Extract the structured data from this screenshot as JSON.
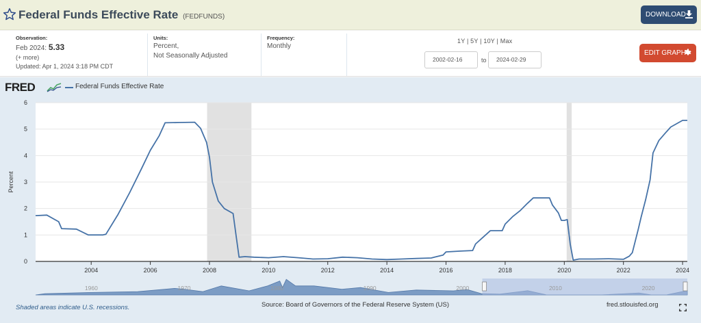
{
  "header": {
    "title": "Federal Funds Effective Rate",
    "series_id": "(FEDFUNDS)",
    "download_label": "DOWNLOAD",
    "star_icon": "star-outline-icon",
    "download_icon": "download-icon"
  },
  "meta": {
    "observation_label": "Observation:",
    "observation_date": "Feb 2024:",
    "observation_value": "5.33",
    "more_link": "(+ more)",
    "updated": "Updated: Apr 1, 2024 3:18 PM CDT",
    "units_label": "Units:",
    "units_line1": "Percent,",
    "units_line2": "Not Seasonally Adjusted",
    "frequency_label": "Frequency:",
    "frequency_value": "Monthly",
    "ranges": "1Y | 5Y | 10Y | Max",
    "date_from": "2002-02-16",
    "date_to": "2024-02-29",
    "to_label": "to",
    "edit_label": "EDIT GRAPH",
    "edit_icon": "gear-icon"
  },
  "chart_area": {
    "logo_text": "FRED",
    "legend_label": "Federal Funds Effective Rate",
    "recession_note": "Shaded areas indicate U.S. recessions.",
    "source": "Source: Board of Governors of the Federal Reserve System (US)",
    "site": "fred.stlouisfed.org",
    "colors": {
      "line": "#4572a7",
      "recession": "#e1e1e1",
      "plot_bg": "#ffffff",
      "panel_bg": "#e2ebf3"
    },
    "navigator_ticks": [
      "1960",
      "1970",
      "1980",
      "1990",
      "2000",
      "2010",
      "2020"
    ]
  },
  "chart_data": {
    "type": "line",
    "title": "",
    "xlabel": "",
    "ylabel": "Percent",
    "ylim": [
      0,
      6
    ],
    "xlim": [
      2002.12,
      2024.16
    ],
    "xticks": [
      "2004",
      "2006",
      "2008",
      "2010",
      "2012",
      "2014",
      "2016",
      "2018",
      "2020",
      "2022",
      "2024"
    ],
    "yticks": [
      "0",
      "1",
      "2",
      "3",
      "4",
      "5",
      "6"
    ],
    "grid": true,
    "legend": "top-left",
    "recessions": [
      [
        2007.92,
        2009.42
      ],
      [
        2020.08,
        2020.25
      ]
    ],
    "series": [
      {
        "name": "Federal Funds Effective Rate",
        "x": [
          2002.12,
          2002.5,
          2002.9,
          2003.0,
          2003.5,
          2003.9,
          2004.4,
          2004.5,
          2004.9,
          2005.3,
          2005.7,
          2006.0,
          2006.3,
          2006.5,
          2007.0,
          2007.5,
          2007.7,
          2007.9,
          2008.0,
          2008.1,
          2008.3,
          2008.5,
          2008.8,
          2008.9,
          2009.0,
          2009.2,
          2009.5,
          2010.0,
          2010.5,
          2011.0,
          2011.5,
          2012.0,
          2012.5,
          2013.0,
          2013.5,
          2014.0,
          2014.5,
          2015.0,
          2015.5,
          2015.9,
          2016.0,
          2016.5,
          2016.9,
          2017.0,
          2017.25,
          2017.5,
          2017.9,
          2018.0,
          2018.25,
          2018.5,
          2018.75,
          2018.95,
          2019.0,
          2019.5,
          2019.6,
          2019.8,
          2019.9,
          2020.0,
          2020.1,
          2020.2,
          2020.3,
          2020.5,
          2021.0,
          2021.5,
          2022.0,
          2022.2,
          2022.3,
          2022.5,
          2022.6,
          2022.75,
          2022.9,
          2023.0,
          2023.2,
          2023.4,
          2023.6,
          2024.0,
          2024.16
        ],
        "values": [
          1.73,
          1.75,
          1.5,
          1.24,
          1.22,
          1.0,
          1.0,
          1.03,
          1.76,
          2.6,
          3.5,
          4.2,
          4.75,
          5.24,
          5.25,
          5.26,
          5.03,
          4.5,
          3.94,
          3.0,
          2.28,
          2.0,
          1.81,
          0.97,
          0.16,
          0.18,
          0.16,
          0.14,
          0.18,
          0.14,
          0.09,
          0.1,
          0.16,
          0.14,
          0.09,
          0.07,
          0.09,
          0.11,
          0.13,
          0.24,
          0.36,
          0.39,
          0.41,
          0.66,
          0.91,
          1.16,
          1.16,
          1.41,
          1.69,
          1.91,
          2.19,
          2.4,
          2.4,
          2.4,
          2.13,
          1.83,
          1.55,
          1.55,
          1.58,
          0.65,
          0.05,
          0.09,
          0.09,
          0.1,
          0.08,
          0.2,
          0.33,
          1.21,
          1.68,
          2.33,
          3.08,
          4.1,
          4.57,
          4.83,
          5.08,
          5.33,
          5.33
        ]
      }
    ]
  }
}
